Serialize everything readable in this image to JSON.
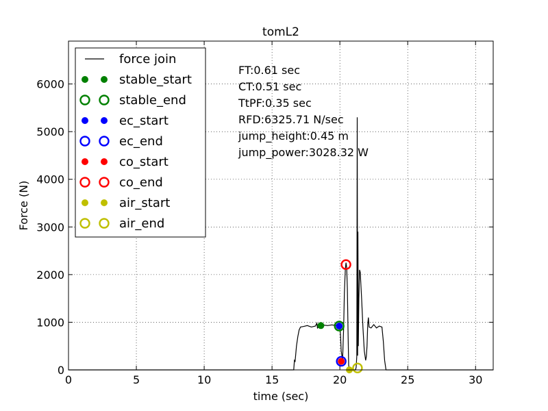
{
  "chart_data": {
    "type": "line",
    "title": "tomL2",
    "xlabel": "time (sec)",
    "ylabel": "Force (N)",
    "xlim": [
      0,
      31.3
    ],
    "ylim": [
      0,
      6900
    ],
    "grid": true,
    "legend_placement": "top-left",
    "xticks": [
      {
        "value": 0,
        "label": "0"
      },
      {
        "value": 5,
        "label": "5"
      },
      {
        "value": 10,
        "label": "10"
      },
      {
        "value": 15,
        "label": "15"
      },
      {
        "value": 20,
        "label": "20"
      },
      {
        "value": 25,
        "label": "25"
      },
      {
        "value": 30,
        "label": "30"
      }
    ],
    "yticks": [
      {
        "value": 0,
        "label": "0"
      },
      {
        "value": 1000,
        "label": "1000"
      },
      {
        "value": 2000,
        "label": "2000"
      },
      {
        "value": 3000,
        "label": "3000"
      },
      {
        "value": 4000,
        "label": "4000"
      },
      {
        "value": 5000,
        "label": "5000"
      },
      {
        "value": 6000,
        "label": "6000"
      }
    ],
    "series": [
      {
        "name": "force join",
        "color": "#000000",
        "style": "line",
        "points": [
          [
            0,
            0
          ],
          [
            16.6,
            0
          ],
          [
            16.65,
            200
          ],
          [
            16.7,
            180
          ],
          [
            16.8,
            500
          ],
          [
            16.9,
            700
          ],
          [
            17.0,
            840
          ],
          [
            17.1,
            900
          ],
          [
            17.3,
            910
          ],
          [
            17.6,
            930
          ],
          [
            17.9,
            900
          ],
          [
            18.2,
            920
          ],
          [
            18.3,
            980
          ],
          [
            18.35,
            880
          ],
          [
            18.5,
            925
          ],
          [
            18.8,
            940
          ],
          [
            19.1,
            930
          ],
          [
            19.4,
            945
          ],
          [
            19.7,
            935
          ],
          [
            19.9,
            920
          ],
          [
            20.0,
            900
          ],
          [
            20.05,
            700
          ],
          [
            20.1,
            400
          ],
          [
            20.2,
            200
          ],
          [
            20.28,
            900
          ],
          [
            20.33,
            1600
          ],
          [
            20.4,
            2100
          ],
          [
            20.45,
            2250
          ],
          [
            20.5,
            2150
          ],
          [
            20.55,
            1700
          ],
          [
            20.6,
            800
          ],
          [
            20.65,
            100
          ],
          [
            20.7,
            0
          ],
          [
            21.15,
            0
          ],
          [
            21.2,
            50
          ],
          [
            21.25,
            300
          ],
          [
            21.28,
            5300
          ],
          [
            21.31,
            300
          ],
          [
            21.33,
            2900
          ],
          [
            21.36,
            500
          ],
          [
            21.4,
            1500
          ],
          [
            21.45,
            2100
          ],
          [
            21.5,
            2050
          ],
          [
            21.6,
            1500
          ],
          [
            21.7,
            900
          ],
          [
            21.8,
            400
          ],
          [
            21.9,
            200
          ],
          [
            21.95,
            280
          ],
          [
            22.0,
            500
          ],
          [
            22.05,
            950
          ],
          [
            22.1,
            1100
          ],
          [
            22.15,
            900
          ],
          [
            22.3,
            880
          ],
          [
            22.5,
            950
          ],
          [
            22.7,
            880
          ],
          [
            22.9,
            920
          ],
          [
            23.1,
            900
          ],
          [
            23.2,
            600
          ],
          [
            23.3,
            200
          ],
          [
            23.4,
            0
          ],
          [
            31.3,
            0
          ]
        ]
      },
      {
        "name": "stable_start",
        "color": "#008000",
        "style": "dot",
        "points": [
          [
            18.6,
            930
          ]
        ]
      },
      {
        "name": "stable_end",
        "color": "#008000",
        "style": "ring",
        "points": [
          [
            19.95,
            920
          ]
        ]
      },
      {
        "name": "ec_start",
        "color": "#0000ff",
        "style": "dot",
        "points": [
          [
            19.95,
            920
          ]
        ]
      },
      {
        "name": "ec_end",
        "color": "#0000ff",
        "style": "ring",
        "points": [
          [
            20.1,
            180
          ]
        ]
      },
      {
        "name": "co_start",
        "color": "#ff0000",
        "style": "dot",
        "points": [
          [
            20.1,
            180
          ]
        ]
      },
      {
        "name": "co_end",
        "color": "#ff0000",
        "style": "ring",
        "points": [
          [
            20.45,
            2210
          ]
        ]
      },
      {
        "name": "air_start",
        "color": "#bfbf00",
        "style": "dot",
        "points": [
          [
            20.7,
            0
          ]
        ]
      },
      {
        "name": "air_end",
        "color": "#bfbf00",
        "style": "ring",
        "points": [
          [
            21.3,
            40
          ]
        ]
      }
    ],
    "annotations": [
      "FT:0.61 sec",
      "CT:0.51 sec",
      "TtPF:0.35 sec",
      "RFD:6325.71 N/sec",
      "jump_height:0.45 m",
      "jump_power:3028.32 W"
    ]
  }
}
